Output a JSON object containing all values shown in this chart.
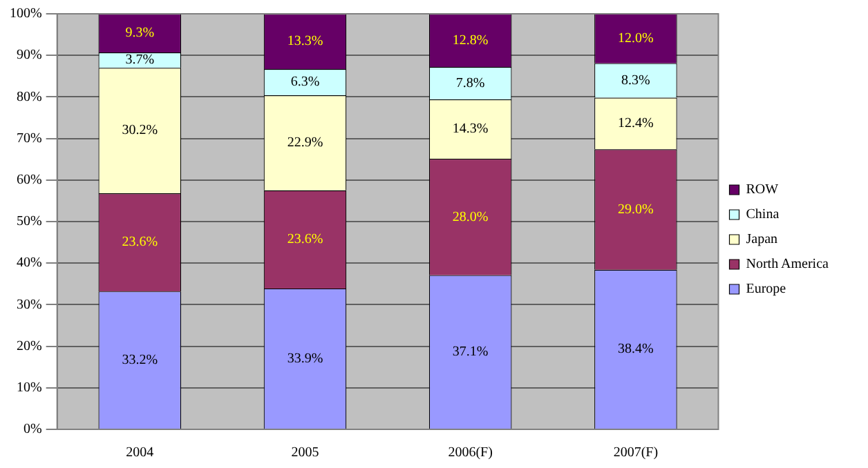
{
  "chart_data": {
    "type": "bar",
    "stacked": true,
    "categories": [
      "2004",
      "2005",
      "2006(F)",
      "2007(F)"
    ],
    "series": [
      {
        "name": "Europe",
        "color": "#9999ff",
        "values": [
          33.2,
          33.9,
          37.1,
          38.4
        ],
        "value_labels": [
          "33.2%",
          "33.9%",
          "37.1%",
          "38.4%"
        ]
      },
      {
        "name": "North America",
        "color": "#993366",
        "values": [
          23.6,
          23.6,
          28.0,
          29.0
        ],
        "value_labels": [
          "23.6%",
          "23.6%",
          "28.0%",
          "29.0%"
        ]
      },
      {
        "name": "Japan",
        "color": "#ffffcc",
        "values": [
          30.2,
          22.9,
          14.3,
          12.4
        ],
        "value_labels": [
          "30.2%",
          "22.9%",
          "14.3%",
          "12.4%"
        ]
      },
      {
        "name": "China",
        "color": "#ccffff",
        "values": [
          3.7,
          6.3,
          7.8,
          8.3
        ],
        "value_labels": [
          "3.7%",
          "6.3%",
          "7.8%",
          "8.3%"
        ]
      },
      {
        "name": "ROW",
        "color": "#660066",
        "values": [
          9.3,
          13.3,
          12.8,
          12.0
        ],
        "value_labels": [
          "9.3%",
          "13.3%",
          "12.8%",
          "12.0%"
        ]
      }
    ],
    "ylim": [
      0,
      100
    ],
    "yticks": [
      {
        "value": 0,
        "label": "0%"
      },
      {
        "value": 10,
        "label": "10%"
      },
      {
        "value": 20,
        "label": "20%"
      },
      {
        "value": 30,
        "label": "30%"
      },
      {
        "value": 40,
        "label": "40%"
      },
      {
        "value": 50,
        "label": "50%"
      },
      {
        "value": 60,
        "label": "60%"
      },
      {
        "value": 70,
        "label": "70%"
      },
      {
        "value": 80,
        "label": "80%"
      },
      {
        "value": 90,
        "label": "90%"
      },
      {
        "value": 100,
        "label": "100%"
      }
    ],
    "grid": "y",
    "legend": "right"
  }
}
